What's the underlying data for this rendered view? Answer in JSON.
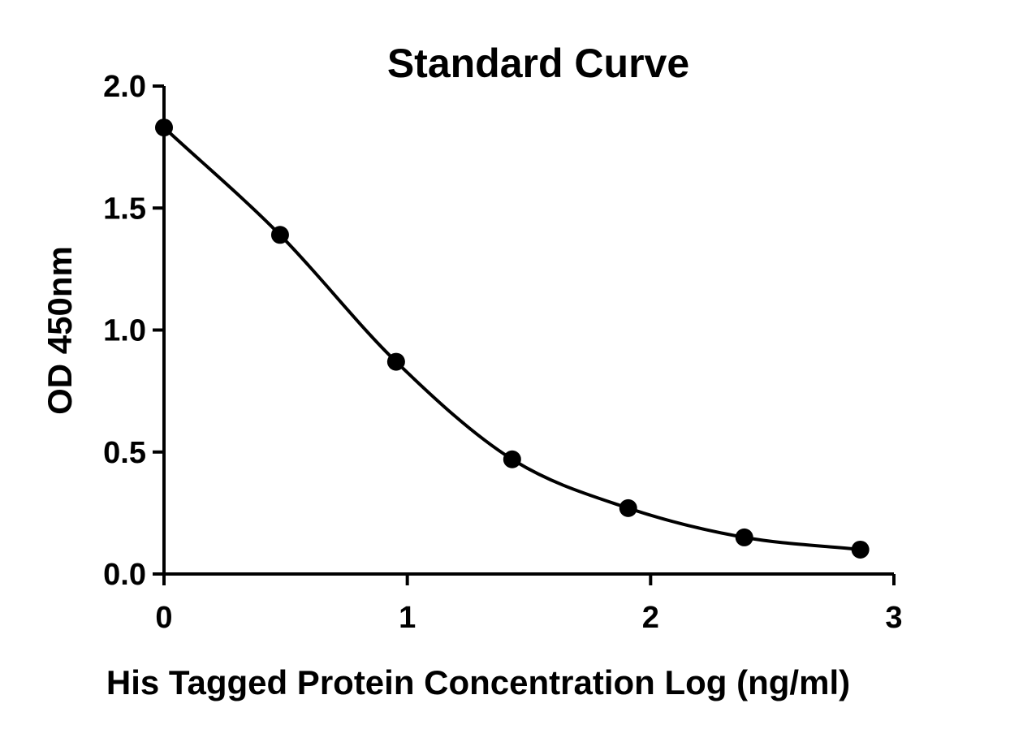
{
  "chart_data": {
    "type": "scatter",
    "title": "Standard Curve",
    "xlabel": "His Tagged Protein Concentration Log (ng/ml)",
    "ylabel": "OD 450nm",
    "xlim": [
      0,
      3
    ],
    "ylim": [
      0,
      2.0
    ],
    "x_ticks": [
      0,
      1,
      2,
      3
    ],
    "x_tick_labels": [
      "0",
      "1",
      "2",
      "3"
    ],
    "y_ticks": [
      0,
      0.5,
      1.0,
      1.5,
      2.0
    ],
    "y_tick_labels": [
      "0.0",
      "0.5",
      "1.0",
      "1.5",
      "2.0"
    ],
    "grid": false,
    "legend": "none",
    "colors": {
      "marker": "#000000",
      "curve": "#000000"
    },
    "series": [
      {
        "points": [
          {
            "x": 0.0,
            "y": 1.83
          },
          {
            "x": 0.477,
            "y": 1.39
          },
          {
            "x": 0.954,
            "y": 0.87
          },
          {
            "x": 1.431,
            "y": 0.47
          },
          {
            "x": 1.908,
            "y": 0.27
          },
          {
            "x": 2.385,
            "y": 0.15
          },
          {
            "x": 2.862,
            "y": 0.1
          }
        ],
        "fit": "smooth curve"
      }
    ]
  }
}
